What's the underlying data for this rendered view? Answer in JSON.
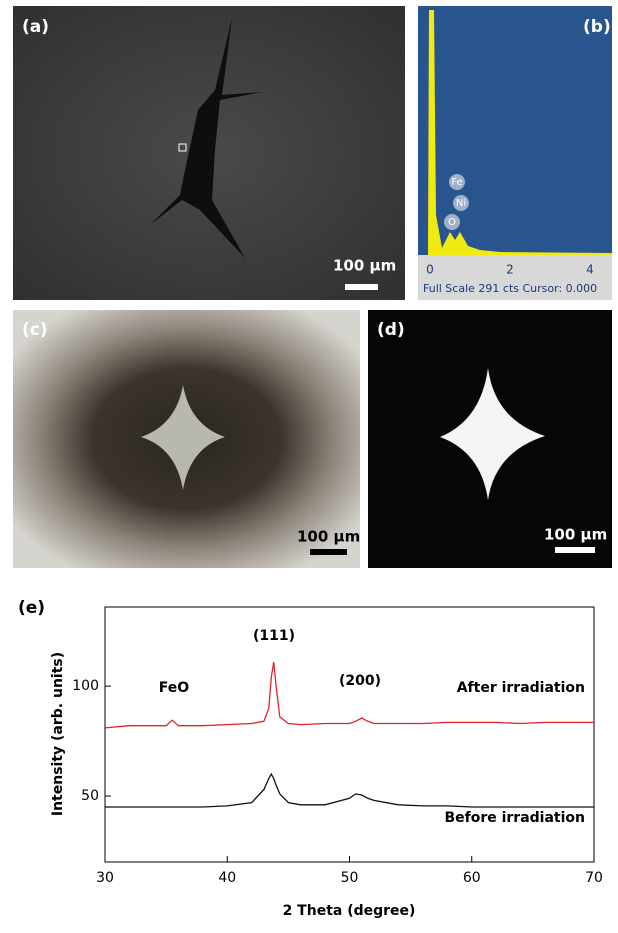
{
  "panels": {
    "a": {
      "label": "(a)",
      "scale": "100 μm"
    },
    "b": {
      "label": "(b)",
      "peaks": [
        "Fe",
        "Ni",
        "O"
      ],
      "ticks": [
        "0",
        "2",
        "4"
      ],
      "footer": "Full Scale 291 cts Cursor: 0.000"
    },
    "c": {
      "label": "(c)",
      "scale": "100 μm"
    },
    "d": {
      "label": "(d)",
      "scale": "100 μm"
    }
  },
  "chart_data": {
    "type": "line",
    "label": "(e)",
    "x_label": "2 Theta (degree)",
    "y_label": "Intensity (arb. units)",
    "xlim": [
      30,
      70
    ],
    "xticks": [
      30,
      40,
      50,
      60,
      70
    ],
    "ylim": [
      20,
      136
    ],
    "yticks": [
      50,
      100
    ],
    "x": [
      30,
      32,
      34,
      35,
      35.5,
      36,
      38,
      40,
      42,
      43,
      43.4,
      43.6,
      43.8,
      44,
      44.3,
      45,
      46,
      48,
      50,
      50.5,
      51,
      51.5,
      52,
      54,
      56,
      58,
      60,
      62,
      64,
      66,
      68,
      70
    ],
    "series": [
      {
        "name": "After irradiation",
        "color": "#e8202a",
        "values": [
          81,
          82,
          82,
          82,
          84.5,
          82,
          82,
          82.5,
          83,
          84,
          90,
          104,
          111,
          100,
          86,
          83,
          82.5,
          83,
          83,
          84,
          85.5,
          84,
          83,
          83,
          83,
          83.5,
          83.5,
          83.5,
          83,
          83.5,
          83.5,
          83.5
        ]
      },
      {
        "name": "Before irradiation",
        "color": "#111111",
        "values": [
          45,
          45,
          45,
          45,
          45,
          45,
          45,
          45.5,
          47,
          53,
          58,
          60,
          58,
          55,
          51,
          47,
          46,
          46,
          49,
          51,
          50.5,
          49,
          48,
          46,
          45.5,
          45.5,
          45,
          45,
          45,
          45,
          45,
          45
        ]
      }
    ],
    "annotations": [
      "FeO",
      "(111)",
      "(200)"
    ]
  }
}
